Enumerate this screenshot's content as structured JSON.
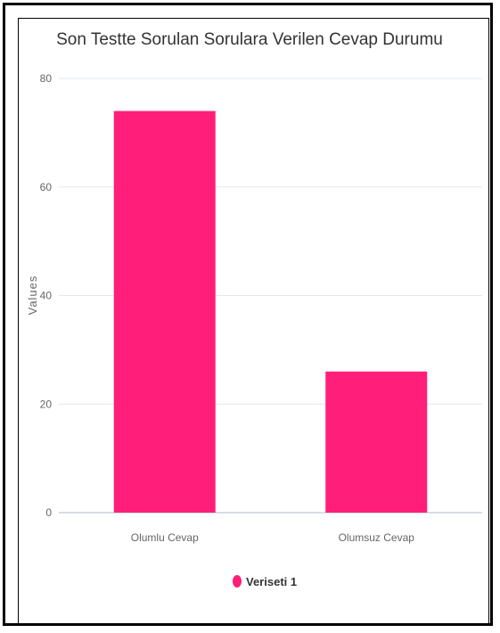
{
  "chart_data": {
    "type": "bar",
    "title": "Son Testte Sorulan Sorulara Verilen Cevap Durumu",
    "categories": [
      "Olumlu Cevap",
      "Olumsuz Cevap"
    ],
    "series": [
      {
        "name": "Veriseti 1",
        "values": [
          74,
          26
        ],
        "color": "#ff1e79"
      }
    ],
    "xlabel": "",
    "ylabel": "Values",
    "ylim": [
      0,
      80
    ],
    "yticks": [
      0,
      20,
      40,
      60,
      80
    ],
    "grid": true,
    "legend": "bottom-center"
  }
}
